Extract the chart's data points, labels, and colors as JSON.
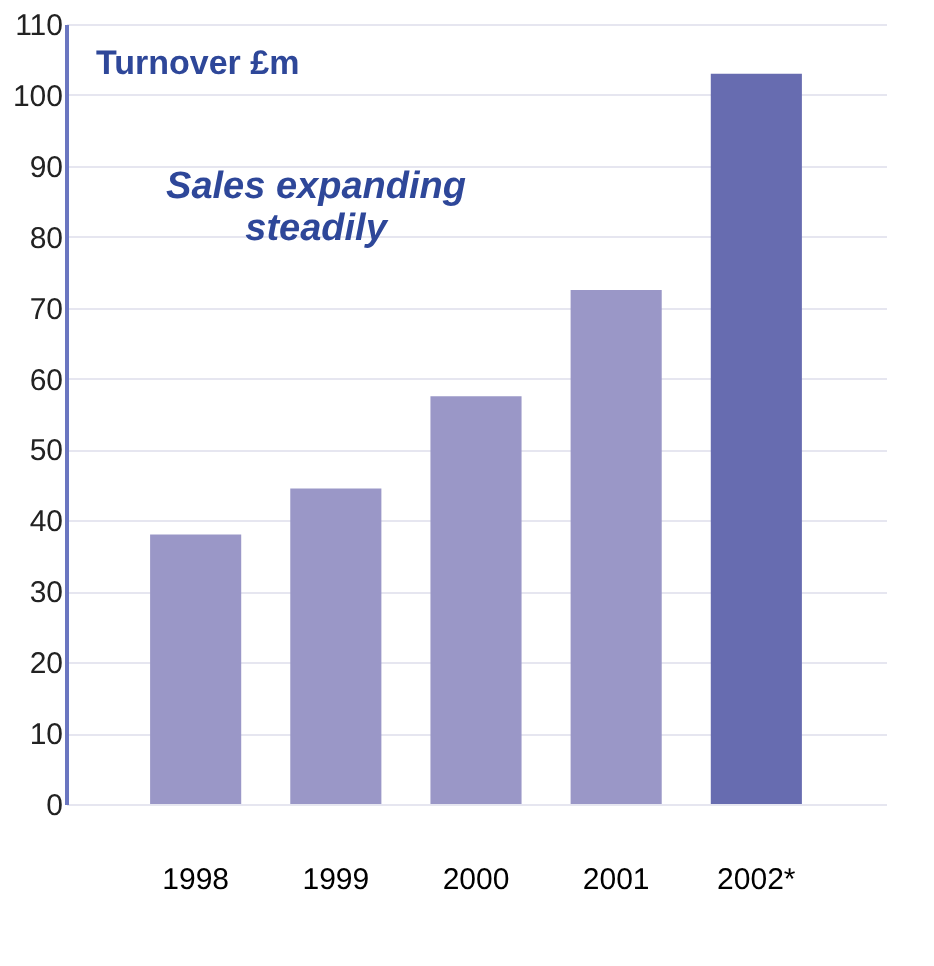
{
  "chart_data": {
    "type": "bar",
    "ylabel": "Turnover £m",
    "annotations": [
      "Sales expanding\nsteadily"
    ],
    "categories": [
      "1998",
      "1999",
      "2000",
      "2001",
      "2002*"
    ],
    "values": [
      38,
      44.5,
      57.5,
      72.5,
      103
    ],
    "colors": [
      "#9a97c7",
      "#9a97c7",
      "#9a97c7",
      "#9a97c7",
      "#676cb0"
    ],
    "ylim": [
      0,
      110
    ],
    "yticks": [
      0,
      10,
      20,
      30,
      40,
      50,
      60,
      70,
      80,
      90,
      100,
      110
    ],
    "grid": "y"
  }
}
